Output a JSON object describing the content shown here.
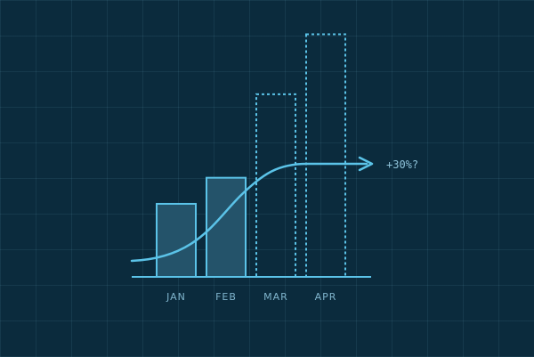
{
  "chart_data": {
    "type": "bar",
    "categories": [
      "JAN",
      "FEB",
      "MAR",
      "APR"
    ],
    "values": [
      28,
      38,
      70,
      93
    ],
    "projected": [
      false,
      false,
      true,
      true
    ],
    "ylim": [
      0,
      100
    ],
    "grid": true,
    "trend_curve": {
      "style": "s-curve",
      "arrow": true
    },
    "annotation": "+30%?",
    "colors": {
      "background": "#0b2b3d",
      "line": "#5bc3e8",
      "bar_fill": "#24536a",
      "tick_label": "#7fb4cc"
    }
  }
}
